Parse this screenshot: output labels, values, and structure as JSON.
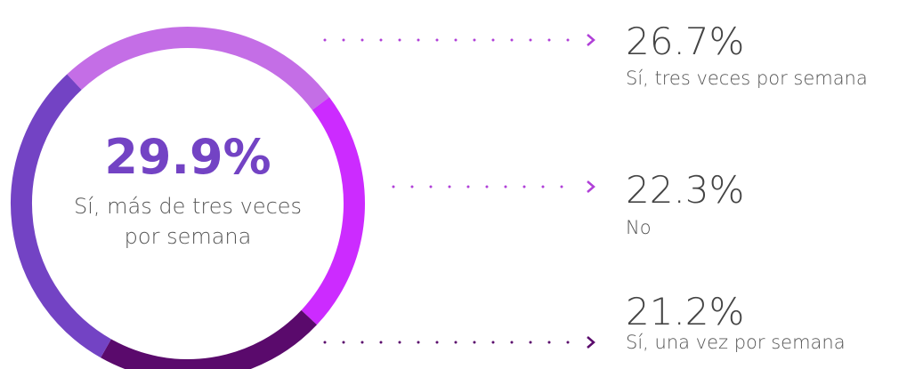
{
  "chart_data": {
    "type": "donut",
    "categories": [
      "Sí, tres veces por semana",
      "No",
      "Sí, una vez  por semana",
      "Sí, más de tres veces por semana"
    ],
    "values": [
      26.7,
      22.3,
      21.2,
      29.9
    ],
    "value_labels": [
      "26.7%",
      "22.3%",
      "21.2%",
      "29.9%"
    ],
    "colors": [
      "#c46ee6",
      "#cc2bff",
      "#5a0a6c",
      "#7343c4"
    ]
  }
}
